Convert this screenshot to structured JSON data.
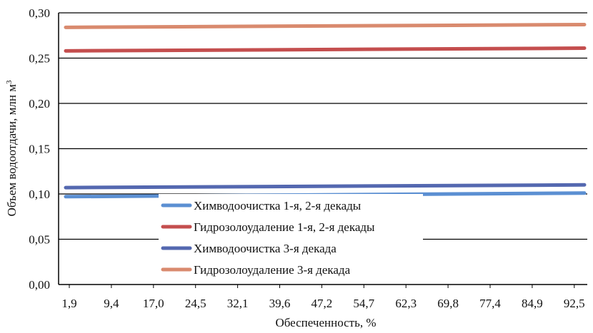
{
  "chart_data": {
    "type": "line",
    "xlabel": "Обеспеченность, %",
    "ylabel": "Объем водоотдачи, млн м",
    "ylabel_sup": "3",
    "ylim": [
      0,
      0.3
    ],
    "yticks": [
      "0,00",
      "0,05",
      "0,10",
      "0,15",
      "0,20",
      "0,25",
      "0,30"
    ],
    "categories": [
      "1,9",
      "9,4",
      "17,0",
      "24,5",
      "32,1",
      "39,6",
      "47,2",
      "54,7",
      "62,3",
      "69,8",
      "77,4",
      "84,9",
      "92,5"
    ],
    "grid": true,
    "legend_position": "bottom-center",
    "series": [
      {
        "name": "Химводоочистка 1-я, 2-я декады",
        "color": "#5b8fd2",
        "start": 0.097,
        "end": 0.101
      },
      {
        "name": "Гидрозолоудаление 1-я, 2-я декады",
        "color": "#c44e4e",
        "start": 0.258,
        "end": 0.261
      },
      {
        "name": "Химводоочистка 3-я декада",
        "color": "#5468b0",
        "start": 0.107,
        "end": 0.11
      },
      {
        "name": "Гидрозолоудаление 3-я декада",
        "color": "#d98a6e",
        "start": 0.284,
        "end": 0.287
      }
    ]
  }
}
